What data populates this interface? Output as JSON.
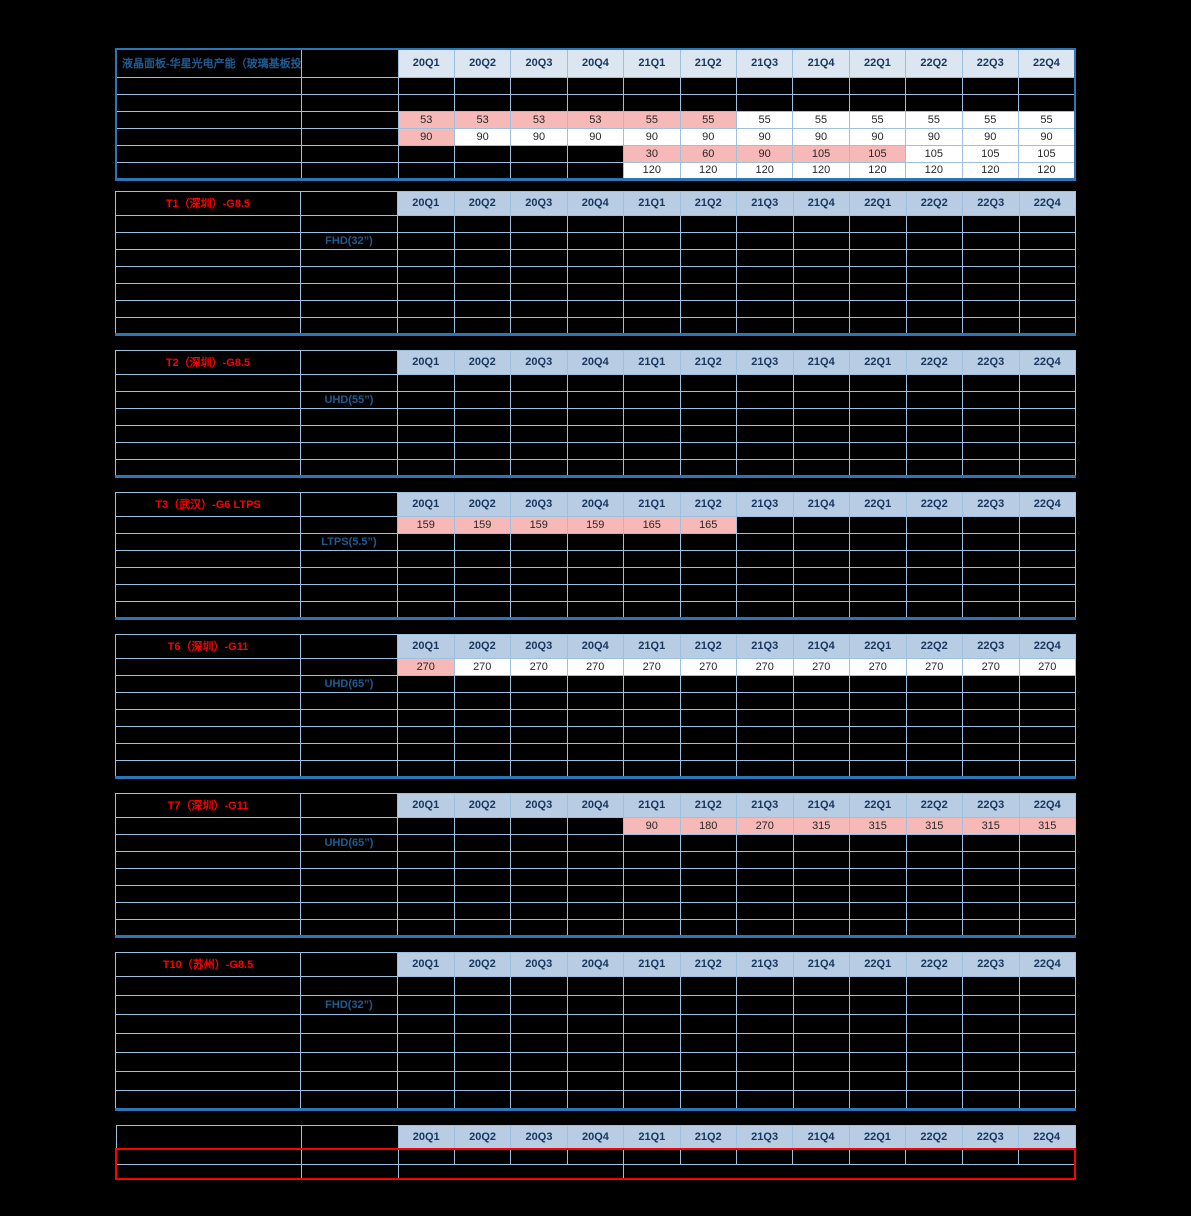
{
  "colors": {
    "page_background": "#000000",
    "pink_cell": "#f7b8b8",
    "white_cell": "#ffffff",
    "grid_line": "#9cc0dd",
    "outer_border": "#2e75b6",
    "main_header_bg": "#dce6f1",
    "section_header_bg": "#b8cce4",
    "title_blue": "#1f5b93",
    "section_title_red": "#ff0000",
    "highlight_box_red": "#ff0000"
  },
  "quarters": [
    "20Q1",
    "20Q2",
    "20Q3",
    "20Q4",
    "21Q1",
    "21Q2",
    "21Q3",
    "21Q4",
    "22Q1",
    "22Q2",
    "22Q3",
    "22Q4"
  ],
  "tables": [
    {
      "id": "main",
      "kind": "main",
      "title": "液晶面板-华星光电产能（玻璃基板投片数K）",
      "rows": [
        {},
        {},
        {
          "cells": [
            {
              "v": "53",
              "p": 1
            },
            {
              "v": "53",
              "p": 1
            },
            {
              "v": "53",
              "p": 1
            },
            {
              "v": "53",
              "p": 1
            },
            {
              "v": "55",
              "p": 1
            },
            {
              "v": "55",
              "p": 1
            },
            {
              "v": "55"
            },
            {
              "v": "55"
            },
            {
              "v": "55"
            },
            {
              "v": "55"
            },
            {
              "v": "55"
            },
            {
              "v": "55"
            }
          ]
        },
        {
          "cells": [
            {
              "v": "90",
              "p": 1
            },
            {
              "v": "90"
            },
            {
              "v": "90"
            },
            {
              "v": "90"
            },
            {
              "v": "90"
            },
            {
              "v": "90"
            },
            {
              "v": "90"
            },
            {
              "v": "90"
            },
            {
              "v": "90"
            },
            {
              "v": "90"
            },
            {
              "v": "90"
            },
            {
              "v": "90"
            }
          ]
        },
        {
          "cells": [
            null,
            null,
            null,
            null,
            {
              "v": "30",
              "p": 1
            },
            {
              "v": "60",
              "p": 1
            },
            {
              "v": "90",
              "p": 1
            },
            {
              "v": "105",
              "p": 1
            },
            {
              "v": "105",
              "p": 1
            },
            {
              "v": "105"
            },
            {
              "v": "105"
            },
            {
              "v": "105"
            }
          ]
        },
        {
          "cells": [
            null,
            null,
            null,
            null,
            {
              "v": "120"
            },
            {
              "v": "120"
            },
            {
              "v": "120"
            },
            {
              "v": "120"
            },
            {
              "v": "120"
            },
            {
              "v": "120"
            },
            {
              "v": "120"
            },
            {
              "v": "120"
            }
          ]
        }
      ]
    },
    {
      "id": "t1",
      "kind": "section",
      "title": "T1（深圳）-G8.5",
      "rows": [
        {},
        {
          "product": "FHD(32”)"
        },
        {},
        {},
        {},
        {},
        {}
      ]
    },
    {
      "id": "t2",
      "kind": "section",
      "title": "T2（深圳）-G8.5",
      "rows": [
        {},
        {
          "product": "UHD(55”)"
        },
        {},
        {},
        {},
        {}
      ]
    },
    {
      "id": "t3",
      "kind": "section",
      "title": "T3（武汉）-G6 LTPS",
      "rows": [
        {
          "cells": [
            {
              "v": "159",
              "p": 1
            },
            {
              "v": "159",
              "p": 1
            },
            {
              "v": "159",
              "p": 1
            },
            {
              "v": "159",
              "p": 1
            },
            {
              "v": "165",
              "p": 1
            },
            {
              "v": "165",
              "p": 1
            },
            null,
            null,
            null,
            null,
            null,
            null
          ]
        },
        {
          "product": "LTPS(5.5”)"
        },
        {},
        {},
        {},
        {}
      ]
    },
    {
      "id": "t6",
      "kind": "section",
      "title": "T6（深圳）-G11",
      "rows": [
        {
          "cells": [
            {
              "v": "270",
              "p": 1
            },
            {
              "v": "270"
            },
            {
              "v": "270"
            },
            {
              "v": "270"
            },
            {
              "v": "270"
            },
            {
              "v": "270"
            },
            {
              "v": "270"
            },
            {
              "v": "270"
            },
            {
              "v": "270"
            },
            {
              "v": "270"
            },
            {
              "v": "270"
            },
            {
              "v": "270"
            }
          ]
        },
        {
          "product": "UHD(65”)"
        },
        {},
        {},
        {},
        {},
        {}
      ]
    },
    {
      "id": "t7",
      "kind": "section",
      "title": "T7（深圳）-G11",
      "rows": [
        {
          "cells": [
            null,
            null,
            null,
            null,
            {
              "v": "90",
              "p": 1
            },
            {
              "v": "180",
              "p": 1
            },
            {
              "v": "270",
              "p": 1
            },
            {
              "v": "315",
              "p": 1
            },
            {
              "v": "315",
              "p": 1
            },
            {
              "v": "315",
              "p": 1
            },
            {
              "v": "315",
              "p": 1
            },
            {
              "v": "315",
              "p": 1
            }
          ]
        },
        {
          "product": "UHD(65”)"
        },
        {},
        {},
        {},
        {},
        {}
      ]
    },
    {
      "id": "t10",
      "kind": "t10",
      "title": "T10（苏州）-G8.5",
      "rows": [
        {},
        {
          "product": "FHD(32”)"
        },
        {},
        {},
        {},
        {},
        {}
      ]
    },
    {
      "id": "bottom",
      "kind": "bottom",
      "title": "",
      "rows": [
        {
          "redbox": true
        },
        {
          "redbox": true,
          "span": [
            4,
            8
          ]
        }
      ]
    }
  ]
}
